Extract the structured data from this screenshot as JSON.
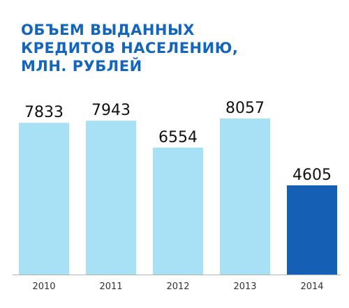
{
  "title_lines": [
    "ОБЪЕМ ВЫДАННЫХ",
    "КРЕДИТОВ НАСЕЛЕНИЮ,",
    "МЛН. РУБЛЕЙ"
  ],
  "colors": {
    "title": "#1565b8",
    "bar": "#a8e0f6",
    "bar_highlight": "#1560b4",
    "axis": "#b3b3b3"
  },
  "chart_data": {
    "type": "bar",
    "title": "ОБЪЕМ ВЫДАННЫХ КРЕДИТОВ НАСЕЛЕНИЮ, МЛН. РУБЛЕЙ",
    "categories": [
      "2010",
      "2011",
      "2012",
      "2013",
      "2014"
    ],
    "values": [
      7833,
      7943,
      6554,
      8057,
      4605
    ],
    "highlight_index": 4,
    "xlabel": "",
    "ylabel": "",
    "grid": false,
    "legend": "none"
  }
}
